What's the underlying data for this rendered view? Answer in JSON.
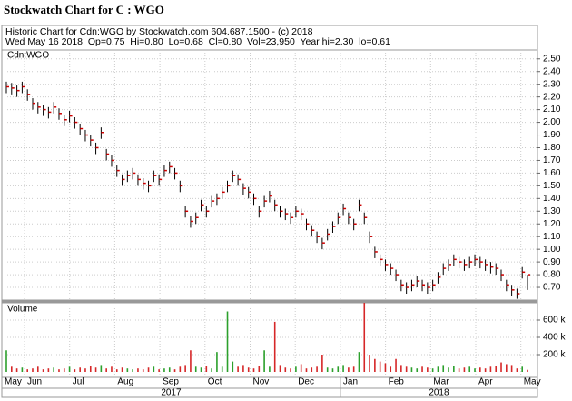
{
  "header": {
    "title": "Stockwatch Chart for C : WGO",
    "line1": "Historic Chart for Cdn:WGO by Stockwatch.com 604.687.1500 - (c) 2018",
    "line2": "Wed May 16 2018  Op=0.75  Hi=0.80  Lo=0.68  Cl=0.80  Vol=23,950  Year hi=2.30  lo=0.61"
  },
  "chart_data": [
    {
      "type": "ohlc",
      "months": [
        "May",
        "Jun",
        "Jul",
        "Aug",
        "Sep",
        "Oct",
        "Nov",
        "Dec",
        "Jan",
        "Feb",
        "Mar",
        "Apr",
        "May"
      ],
      "years": [
        "2017",
        "2018"
      ],
      "categories": [
        null,
        null,
        null,
        null,
        null,
        null,
        null,
        null,
        null,
        null,
        null,
        null,
        null,
        null,
        null,
        null,
        null,
        null,
        null,
        null,
        null,
        null,
        null,
        null,
        null,
        null,
        null,
        null,
        null,
        null,
        null,
        null,
        null,
        null,
        null,
        null,
        null,
        null,
        null,
        null,
        null,
        null,
        null,
        null,
        null,
        null,
        null,
        null,
        null,
        null,
        null,
        null,
        null,
        null,
        null,
        null,
        null,
        null,
        null,
        null,
        null,
        null,
        null,
        null,
        null,
        null,
        null,
        null,
        null,
        null,
        null,
        null,
        null,
        null,
        null,
        null,
        null,
        null,
        null,
        null,
        null,
        null,
        null,
        null,
        null,
        null,
        null,
        null,
        null,
        null,
        null,
        null,
        null,
        null,
        null,
        null,
        null,
        null,
        null,
        null
      ],
      "series": [
        {
          "name": "Cdn:WGO",
          "color": "#000000",
          "close_color": "#cc0000",
          "high": [
            2.32,
            2.31,
            2.29,
            2.32,
            2.26,
            2.19,
            2.16,
            2.14,
            2.12,
            2.16,
            2.11,
            2.06,
            2.09,
            2.04,
            1.99,
            1.94,
            1.9,
            1.84,
            1.96,
            1.79,
            1.74,
            1.66,
            1.59,
            1.62,
            1.64,
            1.59,
            1.56,
            1.54,
            1.62,
            1.59,
            1.66,
            1.69,
            1.64,
            1.54,
            1.34,
            1.26,
            1.29,
            1.39,
            1.34,
            1.42,
            1.44,
            1.49,
            1.54,
            1.62,
            1.59,
            1.52,
            1.49,
            1.44,
            1.34,
            1.42,
            1.46,
            1.39,
            1.34,
            1.32,
            1.29,
            1.34,
            1.32,
            1.24,
            1.19,
            1.14,
            1.09,
            1.16,
            1.22,
            1.29,
            1.36,
            1.29,
            1.24,
            1.39,
            1.29,
            1.14,
            1.02,
            0.96,
            0.92,
            0.89,
            0.84,
            0.76,
            0.74,
            0.76,
            0.79,
            0.76,
            0.74,
            0.76,
            0.82,
            0.89,
            0.92,
            0.96,
            0.94,
            0.92,
            0.94,
            0.96,
            0.94,
            0.92,
            0.9,
            0.89,
            0.84,
            0.76,
            0.72,
            0.69,
            0.86,
            0.8
          ],
          "low": [
            2.23,
            2.22,
            2.2,
            2.23,
            2.17,
            2.1,
            2.07,
            2.05,
            2.03,
            2.07,
            2.02,
            1.97,
            2.0,
            1.95,
            1.9,
            1.85,
            1.81,
            1.75,
            1.87,
            1.7,
            1.65,
            1.57,
            1.5,
            1.53,
            1.55,
            1.5,
            1.47,
            1.45,
            1.53,
            1.5,
            1.57,
            1.6,
            1.55,
            1.45,
            1.25,
            1.17,
            1.2,
            1.3,
            1.25,
            1.33,
            1.35,
            1.4,
            1.45,
            1.53,
            1.5,
            1.43,
            1.4,
            1.35,
            1.25,
            1.33,
            1.37,
            1.3,
            1.25,
            1.23,
            1.2,
            1.25,
            1.23,
            1.15,
            1.1,
            1.05,
            1.0,
            1.07,
            1.13,
            1.2,
            1.27,
            1.2,
            1.15,
            1.3,
            1.2,
            1.05,
            0.93,
            0.87,
            0.83,
            0.8,
            0.75,
            0.67,
            0.65,
            0.67,
            0.7,
            0.67,
            0.65,
            0.67,
            0.73,
            0.8,
            0.83,
            0.87,
            0.85,
            0.83,
            0.85,
            0.87,
            0.85,
            0.83,
            0.81,
            0.8,
            0.75,
            0.67,
            0.63,
            0.61,
            0.77,
            0.68
          ],
          "values": [
            2.28,
            2.27,
            2.25,
            2.28,
            2.22,
            2.15,
            2.12,
            2.1,
            2.08,
            2.12,
            2.07,
            2.02,
            2.05,
            2.0,
            1.95,
            1.9,
            1.86,
            1.8,
            1.92,
            1.75,
            1.7,
            1.62,
            1.55,
            1.58,
            1.6,
            1.55,
            1.52,
            1.5,
            1.58,
            1.55,
            1.62,
            1.65,
            1.6,
            1.5,
            1.3,
            1.22,
            1.25,
            1.35,
            1.3,
            1.38,
            1.4,
            1.45,
            1.5,
            1.58,
            1.55,
            1.48,
            1.45,
            1.4,
            1.3,
            1.38,
            1.42,
            1.35,
            1.3,
            1.28,
            1.25,
            1.3,
            1.28,
            1.2,
            1.15,
            1.1,
            1.05,
            1.12,
            1.18,
            1.25,
            1.32,
            1.25,
            1.2,
            1.35,
            1.25,
            1.1,
            0.98,
            0.92,
            0.88,
            0.85,
            0.8,
            0.72,
            0.7,
            0.72,
            0.75,
            0.72,
            0.7,
            0.72,
            0.78,
            0.85,
            0.88,
            0.92,
            0.9,
            0.88,
            0.9,
            0.92,
            0.9,
            0.88,
            0.86,
            0.85,
            0.8,
            0.72,
            0.68,
            0.65,
            0.82,
            0.8
          ]
        }
      ],
      "ylim": [
        0.6,
        2.57
      ],
      "yticks": [
        {
          "value": 0.7,
          "label": "0.70"
        },
        {
          "value": 0.8,
          "label": "0.80"
        },
        {
          "value": 0.9,
          "label": "0.90"
        },
        {
          "value": 1.0,
          "label": "1.00"
        },
        {
          "value": 1.1,
          "label": "1.10"
        },
        {
          "value": 1.2,
          "label": "1.20"
        },
        {
          "value": 1.3,
          "label": "1.30"
        },
        {
          "value": 1.4,
          "label": "1.40"
        },
        {
          "value": 1.5,
          "label": "1.50"
        },
        {
          "value": 1.6,
          "label": "1.60"
        },
        {
          "value": 1.7,
          "label": "1.70"
        },
        {
          "value": 1.8,
          "label": "1.80"
        },
        {
          "value": 1.9,
          "label": "1.90"
        },
        {
          "value": 2.0,
          "label": "2.00"
        },
        {
          "value": 2.1,
          "label": "2.10"
        },
        {
          "value": 2.2,
          "label": "2.20"
        },
        {
          "value": 2.3,
          "label": "2.30"
        },
        {
          "value": 2.4,
          "label": "2.40"
        },
        {
          "value": 2.5,
          "label": "2.50"
        }
      ],
      "grid": true
    },
    {
      "type": "volume",
      "title": "Volume",
      "up_color": "#2ca02c",
      "down_color": "#d62728",
      "values": [
        250000,
        60000,
        40000,
        50000,
        30000,
        40000,
        60000,
        30000,
        40000,
        50000,
        30000,
        40000,
        60000,
        30000,
        50000,
        40000,
        70000,
        50000,
        80000,
        40000,
        60000,
        30000,
        50000,
        40000,
        30000,
        40000,
        30000,
        50000,
        60000,
        30000,
        40000,
        50000,
        30000,
        60000,
        80000,
        250000,
        60000,
        50000,
        70000,
        40000,
        230000,
        60000,
        700000,
        120000,
        60000,
        80000,
        50000,
        40000,
        70000,
        250000,
        60000,
        580000,
        80000,
        50000,
        40000,
        60000,
        90000,
        40000,
        50000,
        60000,
        200000,
        50000,
        40000,
        60000,
        80000,
        50000,
        60000,
        230000,
        800000,
        200000,
        150000,
        120000,
        100000,
        60000,
        150000,
        80000,
        60000,
        50000,
        40000,
        60000,
        50000,
        40000,
        60000,
        80000,
        50000,
        70000,
        40000,
        50000,
        60000,
        40000,
        50000,
        40000,
        60000,
        70000,
        110000,
        90000,
        80000,
        40000,
        60000,
        23950
      ],
      "ylim": [
        0,
        800000
      ],
      "yticks": [
        {
          "value": 200000,
          "label": "200 k"
        },
        {
          "value": 400000,
          "label": "400 k"
        },
        {
          "value": 600000,
          "label": "600 k"
        }
      ],
      "grid": true
    }
  ]
}
